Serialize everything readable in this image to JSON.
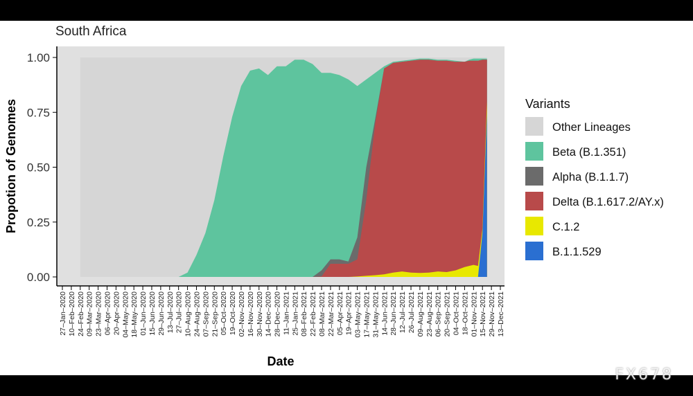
{
  "watermark": "FX678",
  "chart_data": {
    "type": "area",
    "stacked": true,
    "normalized": true,
    "title": "South Africa",
    "xlabel": "Date",
    "ylabel": "Propotion of Genomes",
    "ylim": [
      0,
      1
    ],
    "y_ticks": [
      "0.00",
      "0.25",
      "0.50",
      "0.75",
      "1.00"
    ],
    "x_ticks": [
      "27–Jan–2020",
      "10–Feb–2020",
      "24–Feb–2020",
      "09–Mar–2020",
      "23–Mar–2020",
      "06–Apr–2020",
      "20–Apr–2020",
      "04–May–2020",
      "18–May–2020",
      "01–Jun–2020",
      "15–Jun–2020",
      "29–Jun–2020",
      "13–Jul–2020",
      "27–Jul–2020",
      "10–Aug–2020",
      "24–Aug–2020",
      "07–Sep–2020",
      "21–Sep–2020",
      "05–Oct–2020",
      "19–Oct–2020",
      "02–Nov–2020",
      "16–Nov–2020",
      "30–Nov–2020",
      "14–Dec–2020",
      "28–Dec–2020",
      "11–Jan–2021",
      "25–Jan–2021",
      "08–Feb–2021",
      "22–Feb–2021",
      "08–Mar–2021",
      "22–Mar–2021",
      "05–Apr–2021",
      "19–Apr–2021",
      "03–May–2021",
      "17–May–2021",
      "31–May–2021",
      "14–Jun–2021",
      "28–Jun–2021",
      "12–Jul–2021",
      "26–Jul–2021",
      "09–Aug–2021",
      "23–Aug–2021",
      "06–Sep–2021",
      "20–Sep–2021",
      "04–Oct–2021",
      "18–Oct–2021",
      "01–Nov–2021",
      "15–Nov–2021",
      "29–Nov–2021",
      "13–Dec–2021"
    ],
    "x_data_range": [
      "24–Feb–2020",
      "22–Nov–2021"
    ],
    "legend_title": "Variants",
    "legend_position": "right",
    "grid": false,
    "panel_background": "#e0e0e0",
    "series": [
      {
        "name": "Other Lineages",
        "color": "#d6d6d6"
      },
      {
        "name": "Beta (B.1.351)",
        "color": "#5ec49e"
      },
      {
        "name": "Alpha (B.1.1.7)",
        "color": "#6b6b6b"
      },
      {
        "name": "Delta (B.1.617.2/AY.x)",
        "color": "#b84a4a"
      },
      {
        "name": "C.1.2",
        "color": "#e8e800"
      },
      {
        "name": "B.1.1.529",
        "color": "#2a6fd1"
      }
    ],
    "layers_note": "cumulative upper boundary per date (stack order bottom→top: B.1.1.529, C.1.2, Delta, Alpha, Beta, Other)",
    "dates": [
      "24–Feb–2020",
      "27–Jul–2020",
      "10–Aug–2020",
      "24–Aug–2020",
      "07–Sep–2020",
      "21–Sep–2020",
      "05–Oct–2020",
      "19–Oct–2020",
      "02–Nov–2020",
      "16–Nov–2020",
      "30–Nov–2020",
      "14–Dec–2020",
      "28–Dec–2020",
      "11–Jan–2021",
      "25–Jan–2021",
      "08–Feb–2021",
      "22–Feb–2021",
      "08–Mar–2021",
      "22–Mar–2021",
      "05–Apr–2021",
      "19–Apr–2021",
      "03–May–2021",
      "17–May–2021",
      "31–May–2021",
      "14–Jun–2021",
      "28–Jun–2021",
      "12–Jul–2021",
      "26–Jul–2021",
      "09–Aug–2021",
      "23–Aug–2021",
      "06–Sep–2021",
      "20–Sep–2021",
      "04–Oct–2021",
      "18–Oct–2021",
      "25–Oct–2021",
      "01–Nov–2021",
      "08–Nov–2021",
      "15–Nov–2021",
      "22–Nov–2021"
    ],
    "cumulative": {
      "B.1.1.529": [
        0,
        0,
        0,
        0,
        0,
        0,
        0,
        0,
        0,
        0,
        0,
        0,
        0,
        0,
        0,
        0,
        0,
        0,
        0,
        0,
        0,
        0,
        0,
        0,
        0,
        0,
        0,
        0,
        0,
        0,
        0,
        0,
        0,
        0,
        0,
        0,
        0,
        0.2,
        0.75
      ],
      "C.1.2": [
        0,
        0,
        0,
        0,
        0,
        0,
        0,
        0,
        0,
        0,
        0,
        0,
        0,
        0,
        0,
        0,
        0,
        0,
        0,
        0,
        0,
        0.002,
        0.005,
        0.008,
        0.012,
        0.02,
        0.025,
        0.02,
        0.018,
        0.02,
        0.025,
        0.022,
        0.03,
        0.045,
        0.05,
        0.055,
        0.05,
        0.22,
        0.8
      ],
      "Delta": [
        0,
        0,
        0,
        0,
        0,
        0,
        0,
        0,
        0,
        0,
        0,
        0,
        0,
        0,
        0,
        0,
        0,
        0.002,
        0.06,
        0.06,
        0.06,
        0.08,
        0.35,
        0.7,
        0.95,
        0.975,
        0.98,
        0.985,
        0.99,
        0.99,
        0.985,
        0.985,
        0.98,
        0.98,
        0.985,
        0.985,
        0.985,
        0.99,
        0.99
      ],
      "Alpha": [
        0,
        0,
        0,
        0,
        0,
        0,
        0,
        0,
        0,
        0,
        0,
        0,
        0,
        0,
        0,
        0,
        0,
        0.03,
        0.08,
        0.08,
        0.07,
        0.18,
        0.5,
        0.72,
        0.95,
        0.975,
        0.98,
        0.985,
        0.99,
        0.99,
        0.985,
        0.985,
        0.98,
        0.98,
        0.985,
        0.985,
        0.985,
        0.99,
        0.99
      ],
      "Beta": [
        0,
        0,
        0.02,
        0.1,
        0.2,
        0.35,
        0.55,
        0.73,
        0.87,
        0.94,
        0.95,
        0.92,
        0.96,
        0.96,
        0.99,
        0.99,
        0.97,
        0.93,
        0.93,
        0.92,
        0.9,
        0.87,
        0.9,
        0.93,
        0.96,
        0.98,
        0.985,
        0.99,
        0.995,
        0.995,
        0.99,
        0.99,
        0.985,
        0.98,
        0.99,
        0.995,
        0.995,
        0.995,
        0.995
      ],
      "Other Lineages": [
        1,
        1,
        1,
        1,
        1,
        1,
        1,
        1,
        1,
        1,
        1,
        1,
        1,
        1,
        1,
        1,
        1,
        1,
        1,
        1,
        1,
        1,
        1,
        1,
        1,
        1,
        1,
        1,
        1,
        1,
        1,
        1,
        1,
        1,
        1,
        1,
        1,
        1,
        1
      ]
    }
  }
}
